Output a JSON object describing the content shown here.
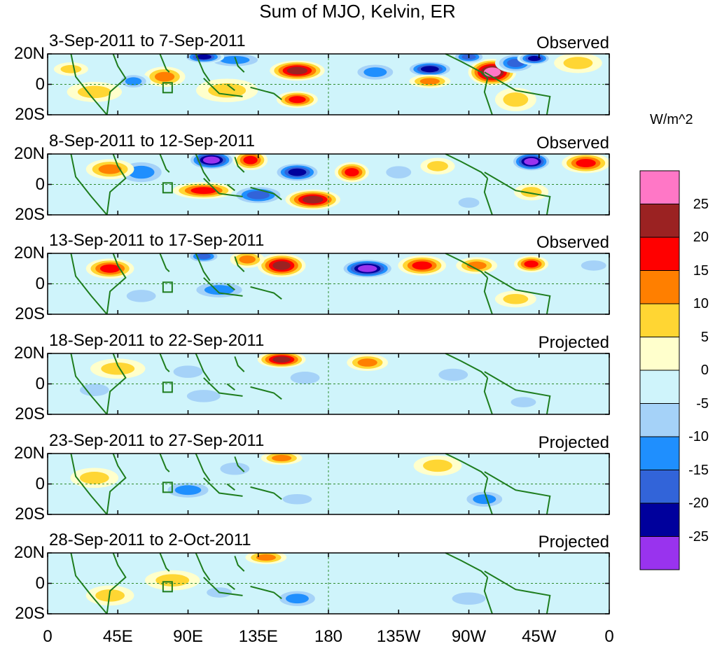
{
  "chart_data": {
    "type": "heatmap",
    "title": "Sum of MJO, Kelvin, ER",
    "xlabel": "",
    "ylabel": "",
    "x_ticks": [
      "0",
      "45E",
      "90E",
      "135E",
      "180",
      "135W",
      "90W",
      "45W",
      "0"
    ],
    "y_ticks": [
      "20N",
      "0",
      "20S"
    ],
    "xlim": [
      0,
      360
    ],
    "ylim": [
      -20,
      20
    ],
    "colorbar": {
      "unit": "W/m^2",
      "levels": [
        "25",
        "20",
        "15",
        "10",
        "5",
        "0",
        "-5",
        "-10",
        "-15",
        "-20",
        "-25"
      ],
      "colors": [
        "#ff77c6",
        "#9b2222",
        "#ff0000",
        "#ff7f00",
        "#ffd633",
        "#ffffcc",
        "#cff4fb",
        "#a5d2f8",
        "#1f8ffe",
        "#3264d9",
        "#00009c",
        "#9933ee"
      ]
    },
    "panels": [
      {
        "period": "3-Sep-2011 to 7-Sep-2011",
        "status": "Observed",
        "anomalies": [
          {
            "lon": 160,
            "lat": 9,
            "rlon": 16,
            "rlat": 6,
            "v": 22
          },
          {
            "lon": 120,
            "lat": 16,
            "rlon": 18,
            "rlat": 5,
            "v": -14
          },
          {
            "lon": 100,
            "lat": 18,
            "rlon": 12,
            "rlat": 4,
            "v": -22
          },
          {
            "lon": 75,
            "lat": 5,
            "rlon": 12,
            "rlat": 6,
            "v": 14
          },
          {
            "lon": 55,
            "lat": 2,
            "rlon": 10,
            "rlat": 5,
            "v": -12
          },
          {
            "lon": 30,
            "lat": -5,
            "rlon": 16,
            "rlat": 6,
            "v": 10
          },
          {
            "lon": 115,
            "lat": -4,
            "rlon": 18,
            "rlat": 7,
            "v": 8
          },
          {
            "lon": 160,
            "lat": -10,
            "rlon": 12,
            "rlat": 5,
            "v": 17
          },
          {
            "lon": 210,
            "lat": 8,
            "rlon": 14,
            "rlat": 6,
            "v": -12
          },
          {
            "lon": 245,
            "lat": 10,
            "rlon": 14,
            "rlat": 5,
            "v": -22
          },
          {
            "lon": 245,
            "lat": 2,
            "rlon": 12,
            "rlat": 4,
            "v": 12
          },
          {
            "lon": 285,
            "lat": 8,
            "rlon": 14,
            "rlat": 8,
            "v": 28
          },
          {
            "lon": 300,
            "lat": 14,
            "rlon": 12,
            "rlat": 6,
            "v": -18
          },
          {
            "lon": 312,
            "lat": 17,
            "rlon": 10,
            "rlat": 4,
            "v": -24
          },
          {
            "lon": 270,
            "lat": 18,
            "rlon": 10,
            "rlat": 4,
            "v": -20
          },
          {
            "lon": 300,
            "lat": -10,
            "rlon": 12,
            "rlat": 7,
            "v": 8
          },
          {
            "lon": 340,
            "lat": 14,
            "rlon": 14,
            "rlat": 6,
            "v": 10
          },
          {
            "lon": 15,
            "lat": 10,
            "rlon": 10,
            "rlat": 4,
            "v": 8
          }
        ]
      },
      {
        "period": "8-Sep-2011 to 12-Sep-2011",
        "status": "Observed",
        "anomalies": [
          {
            "lon": 105,
            "lat": 16,
            "rlon": 14,
            "rlat": 6,
            "v": -26
          },
          {
            "lon": 130,
            "lat": 16,
            "rlon": 10,
            "rlat": 6,
            "v": 16
          },
          {
            "lon": 160,
            "lat": 8,
            "rlon": 14,
            "rlat": 6,
            "v": -22
          },
          {
            "lon": 195,
            "lat": 8,
            "rlon": 10,
            "rlat": 6,
            "v": 17
          },
          {
            "lon": 100,
            "lat": -4,
            "rlon": 18,
            "rlat": 5,
            "v": 17
          },
          {
            "lon": 135,
            "lat": -7,
            "rlon": 16,
            "rlat": 6,
            "v": -18
          },
          {
            "lon": 170,
            "lat": -10,
            "rlon": 16,
            "rlat": 6,
            "v": 22
          },
          {
            "lon": 60,
            "lat": 8,
            "rlon": 16,
            "rlat": 8,
            "v": -14
          },
          {
            "lon": 40,
            "lat": 10,
            "rlon": 14,
            "rlat": 6,
            "v": 12
          },
          {
            "lon": 225,
            "lat": 8,
            "rlon": 12,
            "rlat": 6,
            "v": -10
          },
          {
            "lon": 250,
            "lat": 12,
            "rlon": 10,
            "rlat": 5,
            "v": 10
          },
          {
            "lon": 310,
            "lat": 15,
            "rlon": 12,
            "rlat": 6,
            "v": -26
          },
          {
            "lon": 345,
            "lat": 14,
            "rlon": 14,
            "rlat": 6,
            "v": 20
          },
          {
            "lon": 310,
            "lat": -5,
            "rlon": 10,
            "rlat": 5,
            "v": 10
          },
          {
            "lon": 270,
            "lat": -12,
            "rlon": 10,
            "rlat": 5,
            "v": -8
          }
        ]
      },
      {
        "period": "13-Sep-2011 to 17-Sep-2011",
        "status": "Observed",
        "anomalies": [
          {
            "lon": 40,
            "lat": 10,
            "rlon": 14,
            "rlat": 6,
            "v": 20
          },
          {
            "lon": 100,
            "lat": 18,
            "rlon": 10,
            "rlat": 4,
            "v": -20
          },
          {
            "lon": 150,
            "lat": 12,
            "rlon": 14,
            "rlat": 7,
            "v": 22
          },
          {
            "lon": 128,
            "lat": 16,
            "rlon": 10,
            "rlat": 5,
            "v": 14
          },
          {
            "lon": 205,
            "lat": 10,
            "rlon": 16,
            "rlat": 6,
            "v": -28
          },
          {
            "lon": 240,
            "lat": 12,
            "rlon": 14,
            "rlat": 6,
            "v": 18
          },
          {
            "lon": 275,
            "lat": 12,
            "rlon": 12,
            "rlat": 5,
            "v": 15
          },
          {
            "lon": 310,
            "lat": 13,
            "rlon": 10,
            "rlat": 5,
            "v": 17
          },
          {
            "lon": 350,
            "lat": 12,
            "rlon": 12,
            "rlat": 5,
            "v": -10
          },
          {
            "lon": 110,
            "lat": -4,
            "rlon": 18,
            "rlat": 6,
            "v": -12
          },
          {
            "lon": 60,
            "lat": -8,
            "rlon": 14,
            "rlat": 6,
            "v": -10
          },
          {
            "lon": 300,
            "lat": -10,
            "rlon": 12,
            "rlat": 5,
            "v": 10
          }
        ]
      },
      {
        "period": "18-Sep-2011 to 22-Sep-2011",
        "status": "Projected",
        "anomalies": [
          {
            "lon": 150,
            "lat": 16,
            "rlon": 14,
            "rlat": 5,
            "v": 22
          },
          {
            "lon": 90,
            "lat": 8,
            "rlon": 14,
            "rlat": 6,
            "v": -10
          },
          {
            "lon": 205,
            "lat": 14,
            "rlon": 12,
            "rlat": 5,
            "v": 14
          },
          {
            "lon": 45,
            "lat": 10,
            "rlon": 16,
            "rlat": 6,
            "v": 8
          },
          {
            "lon": 100,
            "lat": -8,
            "rlon": 16,
            "rlat": 6,
            "v": -10
          },
          {
            "lon": 165,
            "lat": 4,
            "rlon": 14,
            "rlat": 6,
            "v": -8
          },
          {
            "lon": 260,
            "lat": 6,
            "rlon": 14,
            "rlat": 6,
            "v": -6
          },
          {
            "lon": 305,
            "lat": -12,
            "rlon": 12,
            "rlat": 5,
            "v": -8
          },
          {
            "lon": 30,
            "lat": -4,
            "rlon": 14,
            "rlat": 6,
            "v": -8
          }
        ]
      },
      {
        "period": "23-Sep-2011 to 27-Sep-2011",
        "status": "Projected",
        "anomalies": [
          {
            "lon": 150,
            "lat": 17,
            "rlon": 12,
            "rlat": 4,
            "v": 15
          },
          {
            "lon": 250,
            "lat": 12,
            "rlon": 14,
            "rlat": 6,
            "v": 8
          },
          {
            "lon": 90,
            "lat": -4,
            "rlon": 16,
            "rlat": 6,
            "v": -14
          },
          {
            "lon": 30,
            "lat": 4,
            "rlon": 14,
            "rlat": 6,
            "v": 6
          },
          {
            "lon": 280,
            "lat": -10,
            "rlon": 14,
            "rlat": 6,
            "v": -12
          },
          {
            "lon": 160,
            "lat": -10,
            "rlon": 14,
            "rlat": 5,
            "v": -8
          },
          {
            "lon": 120,
            "lat": 10,
            "rlon": 14,
            "rlat": 6,
            "v": -6
          }
        ]
      },
      {
        "period": "28-Sep-2011 to 2-Oct-2011",
        "status": "Projected",
        "anomalies": [
          {
            "lon": 140,
            "lat": 17,
            "rlon": 12,
            "rlat": 4,
            "v": 12
          },
          {
            "lon": 160,
            "lat": -10,
            "rlon": 14,
            "rlat": 6,
            "v": -14
          },
          {
            "lon": 80,
            "lat": 2,
            "rlon": 16,
            "rlat": 6,
            "v": 6
          },
          {
            "lon": 40,
            "lat": -8,
            "rlon": 14,
            "rlat": 6,
            "v": 8
          },
          {
            "lon": 270,
            "lat": -10,
            "rlon": 16,
            "rlat": 6,
            "v": -6
          },
          {
            "lon": 110,
            "lat": -6,
            "rlon": 12,
            "rlat": 5,
            "v": -6
          }
        ]
      }
    ]
  }
}
